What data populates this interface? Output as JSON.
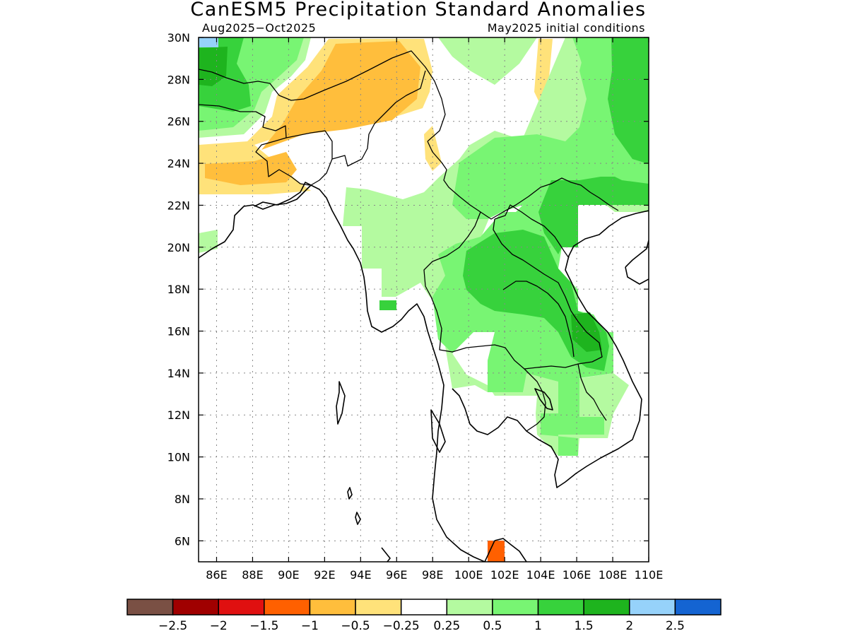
{
  "title": "CanESM5 Precipitation Standard Anomalies",
  "subtitle_left": "Aug2025−Oct2025",
  "subtitle_right": "May2025 initial conditions",
  "map": {
    "lon_range": [
      85,
      110
    ],
    "lat_range": [
      5,
      30
    ],
    "lon_ticks": [
      86,
      88,
      90,
      92,
      94,
      96,
      98,
      100,
      102,
      104,
      106,
      108,
      110
    ],
    "lon_tick_labels": [
      "86E",
      "88E",
      "90E",
      "92E",
      "94E",
      "96E",
      "98E",
      "100E",
      "102E",
      "104E",
      "106E",
      "108E",
      "110E"
    ],
    "lat_ticks": [
      6,
      8,
      10,
      12,
      14,
      16,
      18,
      20,
      22,
      24,
      26,
      28,
      30
    ],
    "lat_tick_labels": [
      "6N",
      "8N",
      "10N",
      "12N",
      "14N",
      "16N",
      "18N",
      "20N",
      "22N",
      "24N",
      "26N",
      "28N",
      "30N"
    ],
    "grid": "dotted"
  },
  "legend": {
    "colors": [
      "#7a5044",
      "#a00000",
      "#e01010",
      "#ff6000",
      "#ffbe3c",
      "#ffe27a",
      "#ffffff",
      "#b4faa0",
      "#78f573",
      "#37d23c",
      "#1eb41e",
      "#96d2fa",
      "#1464d2"
    ],
    "labels": [
      "−2.5",
      "−2",
      "−1.5",
      "−1",
      "−0.5",
      "−0.25",
      "0.25",
      "0.5",
      "1",
      "1.5",
      "2",
      "2.5"
    ]
  }
}
